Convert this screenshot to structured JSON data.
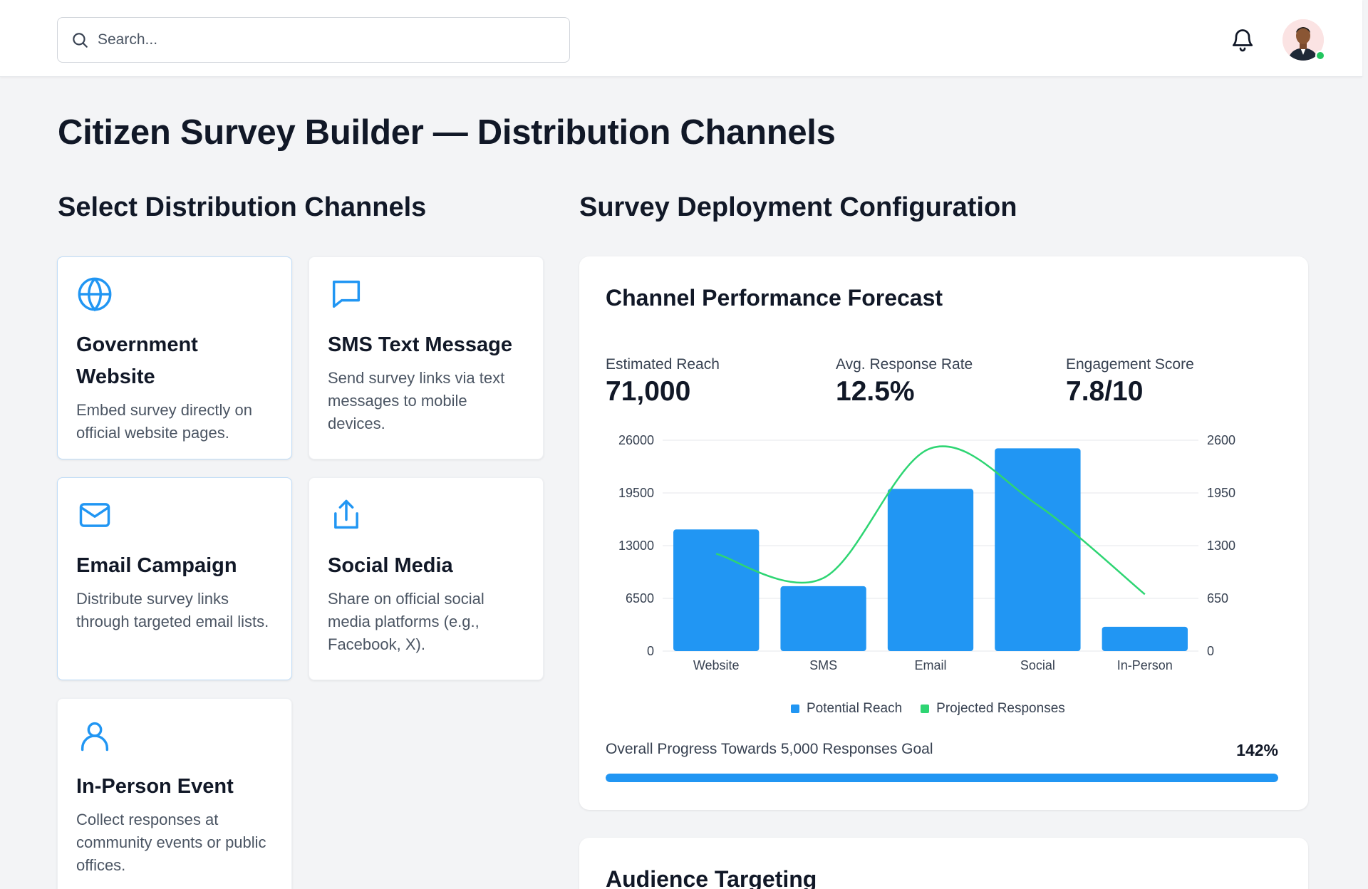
{
  "header": {
    "search_placeholder": "Search...",
    "notifications_icon": "bell-icon",
    "avatar_status_color": "#22c55e"
  },
  "page": {
    "title": "Citizen Survey Builder — Distribution Channels"
  },
  "channels_section": {
    "title": "Select Distribution Channels",
    "cards": [
      {
        "icon": "globe-icon",
        "title": "Government Website",
        "description": "Embed survey directly on official website pages.",
        "selected": true
      },
      {
        "icon": "message-icon",
        "title": "SMS Text Message",
        "description": "Send survey links via text messages to mobile devices.",
        "selected": false
      },
      {
        "icon": "mail-icon",
        "title": "Email Campaign",
        "description": "Distribute survey links through targeted email lists.",
        "selected": true
      },
      {
        "icon": "share-icon",
        "title": "Social Media",
        "description": "Share on official social media platforms (e.g., Facebook, X).",
        "selected": false
      },
      {
        "icon": "user-icon",
        "title": "In-Person Event",
        "description": "Collect responses at community events or public offices.",
        "selected": false
      }
    ]
  },
  "config_section": {
    "title": "Survey Deployment Configuration",
    "forecast": {
      "title": "Channel Performance Forecast",
      "metrics": [
        {
          "label": "Estimated Reach",
          "value": "71,000"
        },
        {
          "label": "Avg. Response Rate",
          "value": "12.5%"
        },
        {
          "label": "Engagement Score",
          "value": "7.8/10"
        }
      ],
      "progress": {
        "label": "Overall Progress Towards 5,000 Responses Goal",
        "value_text": "142%",
        "fraction": 1.0
      }
    },
    "audience": {
      "title": "Audience Targeting"
    }
  },
  "colors": {
    "accent": "#2196f3",
    "green": "#2ed573"
  },
  "chart_data": {
    "type": "bar",
    "categories": [
      "Website",
      "SMS",
      "Email",
      "Social",
      "In-Person"
    ],
    "series": [
      {
        "name": "Potential Reach",
        "type": "bar",
        "axis": "left",
        "values": [
          15000,
          8000,
          20000,
          25000,
          3000
        ],
        "color": "#2196f3"
      },
      {
        "name": "Projected Responses",
        "type": "line",
        "axis": "right",
        "values": [
          1200,
          900,
          2500,
          1800,
          700
        ],
        "color": "#2ed573"
      }
    ],
    "yticks_left": [
      "0",
      "6500",
      "13000",
      "19500",
      "26000"
    ],
    "yticks_right": [
      "0",
      "650",
      "1300",
      "1950",
      "2600"
    ],
    "ylim_left": [
      0,
      26000
    ],
    "ylim_right": [
      0,
      2600
    ],
    "legend_position": "bottom-center",
    "grid": true
  }
}
